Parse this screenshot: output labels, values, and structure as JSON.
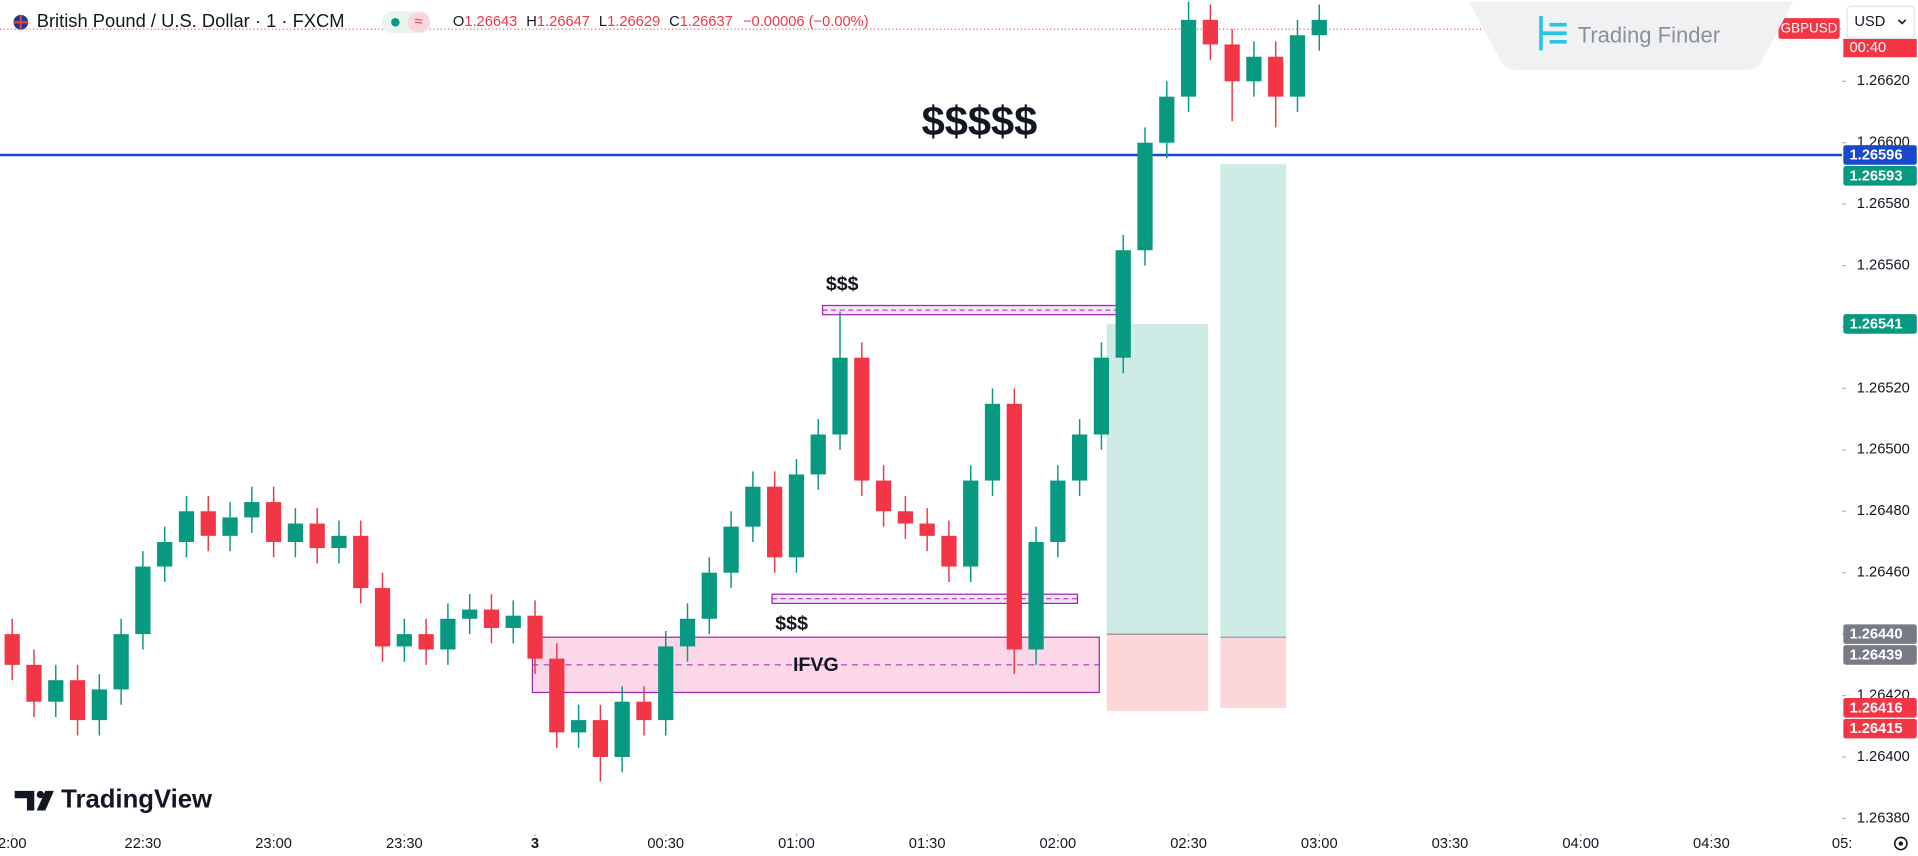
{
  "chart_data": {
    "type": "candlestick",
    "header": {
      "symbol": "British Pound / U.S. Dollar · 1 · FXCM",
      "ohlc": [
        {
          "key": "O",
          "value": "1.26643"
        },
        {
          "key": "H",
          "value": "1.26647"
        },
        {
          "key": "L",
          "value": "1.26629"
        },
        {
          "key": "C",
          "value": "1.26637"
        }
      ],
      "change": "−0.00006 (−0.00%)"
    },
    "brands": {
      "top": "Trading Finder",
      "bottom": "TradingView"
    },
    "currency": "USD",
    "up_color": "#089981",
    "down_color": "#f23645",
    "x": [
      0,
      5,
      10,
      15,
      20,
      25,
      30,
      35,
      40,
      45,
      50,
      55,
      60,
      65,
      70,
      75,
      80,
      85,
      90,
      95,
      100,
      105,
      110,
      115,
      120,
      125,
      130,
      135,
      140,
      145,
      150,
      155,
      160,
      165,
      170,
      175,
      180,
      185,
      190,
      195,
      200,
      205,
      210,
      215,
      220,
      225,
      230,
      235,
      240,
      245,
      250,
      255,
      260,
      265,
      270,
      275,
      280,
      285,
      290,
      295,
      300
    ],
    "open": [
      1.2644,
      1.2643,
      1.26418,
      1.26425,
      1.26412,
      1.26422,
      1.2644,
      1.26462,
      1.2647,
      1.2648,
      1.26472,
      1.26478,
      1.26483,
      1.2647,
      1.26476,
      1.26468,
      1.26472,
      1.26455,
      1.26436,
      1.2644,
      1.26435,
      1.26445,
      1.26448,
      1.26442,
      1.26446,
      1.26432,
      1.26408,
      1.26412,
      1.264,
      1.26418,
      1.26412,
      1.26436,
      1.26445,
      1.2646,
      1.26475,
      1.26488,
      1.26465,
      1.26492,
      1.26505,
      1.2653,
      1.2649,
      1.2648,
      1.26476,
      1.26472,
      1.26462,
      1.2649,
      1.26515,
      1.26435,
      1.2647,
      1.2649,
      1.26505,
      1.2653,
      1.26565,
      1.266,
      1.26615,
      1.2664,
      1.26632,
      1.2662,
      1.26628,
      1.26615,
      1.26635
    ],
    "high": [
      1.26445,
      1.26435,
      1.2643,
      1.2643,
      1.26427,
      1.26445,
      1.26467,
      1.26475,
      1.26485,
      1.26485,
      1.26483,
      1.26488,
      1.26488,
      1.26481,
      1.26481,
      1.26477,
      1.26477,
      1.2646,
      1.26445,
      1.26445,
      1.2645,
      1.26453,
      1.26453,
      1.26451,
      1.26451,
      1.26437,
      1.26417,
      1.26417,
      1.26423,
      1.26423,
      1.26441,
      1.2645,
      1.26465,
      1.2648,
      1.26493,
      1.26493,
      1.26497,
      1.2651,
      1.26545,
      1.26535,
      1.26495,
      1.26485,
      1.26481,
      1.26477,
      1.26495,
      1.2652,
      1.2652,
      1.26475,
      1.26495,
      1.2651,
      1.26535,
      1.2657,
      1.26605,
      1.2662,
      1.2666,
      1.26645,
      1.26637,
      1.26633,
      1.26633,
      1.2664,
      1.26645
    ],
    "low": [
      1.26425,
      1.26413,
      1.26413,
      1.26407,
      1.26407,
      1.26417,
      1.26435,
      1.26457,
      1.26465,
      1.26467,
      1.26467,
      1.26473,
      1.26465,
      1.26465,
      1.26463,
      1.26463,
      1.2645,
      1.26431,
      1.26431,
      1.2643,
      1.2643,
      1.2644,
      1.26437,
      1.26437,
      1.26427,
      1.26403,
      1.26403,
      1.26392,
      1.26395,
      1.26407,
      1.26407,
      1.26431,
      1.2644,
      1.26455,
      1.2647,
      1.2646,
      1.2646,
      1.26487,
      1.265,
      1.26485,
      1.26475,
      1.26471,
      1.26467,
      1.26457,
      1.26457,
      1.26485,
      1.26427,
      1.2643,
      1.26465,
      1.26485,
      1.265,
      1.26525,
      1.2656,
      1.26595,
      1.2661,
      1.26627,
      1.26607,
      1.26615,
      1.26605,
      1.2661,
      1.2663
    ],
    "close": [
      1.2643,
      1.26418,
      1.26425,
      1.26412,
      1.26422,
      1.2644,
      1.26462,
      1.2647,
      1.2648,
      1.26472,
      1.26478,
      1.26483,
      1.2647,
      1.26476,
      1.26468,
      1.26472,
      1.26455,
      1.26436,
      1.2644,
      1.26435,
      1.26445,
      1.26448,
      1.26442,
      1.26446,
      1.26432,
      1.26408,
      1.26412,
      1.264,
      1.26418,
      1.26412,
      1.26436,
      1.26445,
      1.2646,
      1.26475,
      1.26488,
      1.26465,
      1.26492,
      1.26505,
      1.2653,
      1.2649,
      1.2648,
      1.26476,
      1.26472,
      1.26462,
      1.2649,
      1.26515,
      1.26435,
      1.2647,
      1.2649,
      1.26505,
      1.2653,
      1.26565,
      1.266,
      1.26615,
      1.2664,
      1.26632,
      1.2662,
      1.26628,
      1.26615,
      1.26635,
      1.2664
    ],
    "xlim": [
      -2.8,
      420
    ],
    "xticks": [
      {
        "value": 0,
        "label": "2:00"
      },
      {
        "value": 30,
        "label": "22:30"
      },
      {
        "value": 60,
        "label": "23:00"
      },
      {
        "value": 90,
        "label": "23:30"
      },
      {
        "value": 120,
        "label": "3"
      },
      {
        "value": 150,
        "label": "00:30"
      },
      {
        "value": 180,
        "label": "01:00"
      },
      {
        "value": 210,
        "label": "01:30"
      },
      {
        "value": 240,
        "label": "02:00"
      },
      {
        "value": 270,
        "label": "02:30"
      },
      {
        "value": 300,
        "label": "03:00"
      },
      {
        "value": 330,
        "label": "03:30"
      },
      {
        "value": 360,
        "label": "04:00"
      },
      {
        "value": 390,
        "label": "04:30"
      },
      {
        "value": 420,
        "label": "05:"
      }
    ],
    "ylim": [
      1.26375,
      1.26646
    ],
    "yticks": [
      {
        "value": 1.2638,
        "label": "1.26380"
      },
      {
        "value": 1.264,
        "label": "1.26400"
      },
      {
        "value": 1.2642,
        "label": "1.26420"
      },
      {
        "value": 1.2644,
        "label": "1.26440"
      },
      {
        "value": 1.2646,
        "label": "1.26460"
      },
      {
        "value": 1.2648,
        "label": "1.26480"
      },
      {
        "value": 1.265,
        "label": "1.26500"
      },
      {
        "value": 1.2652,
        "label": "1.26520"
      },
      {
        "value": 1.2654,
        "label": "1.26540"
      },
      {
        "value": 1.2656,
        "label": "1.26560"
      },
      {
        "value": 1.2658,
        "label": "1.26580"
      },
      {
        "value": 1.266,
        "label": "1.26600"
      },
      {
        "value": 1.2662,
        "label": "1.26620"
      }
    ],
    "grid": false,
    "current": {
      "price": 1.26637,
      "symbol_tag": "GBPUSD",
      "countdown": "00:40"
    },
    "level": {
      "value": 1.26596,
      "color": "#1848cc"
    },
    "level_annotation": {
      "text": "$$$$$",
      "x": 222,
      "y": 1.26606
    },
    "liquidity_zones": [
      {
        "label": "$$$",
        "x": [
          186,
          256.5
        ],
        "y": [
          1.26544,
          1.26547
        ],
        "label_side": "top"
      },
      {
        "label": "$$$",
        "x": [
          174.4,
          244.5
        ],
        "y": [
          1.2645,
          1.26453
        ],
        "label_side": "bottom"
      }
    ],
    "fvg": {
      "label": "IFVG",
      "x": [
        119.4,
        249.5
      ],
      "y": [
        1.26421,
        1.26439
      ]
    },
    "positions": [
      {
        "x": [
          251.2,
          274.5
        ],
        "target": 1.26541,
        "entry": 1.2644,
        "stop": 1.26415
      },
      {
        "x": [
          277.3,
          292.4
        ],
        "target": 1.26593,
        "entry": 1.26439,
        "stop": 1.26416
      }
    ],
    "price_tags": [
      {
        "value": 1.26596,
        "label": "1.26596",
        "color": "#1848cc"
      },
      {
        "value": 1.26593,
        "label": "1.26593",
        "color": "#089981"
      },
      {
        "value": 1.26541,
        "label": "1.26541",
        "color": "#089981"
      },
      {
        "value": 1.2644,
        "label": "1.26440",
        "color": "#787b86"
      },
      {
        "value": 1.26439,
        "label": "1.26439",
        "color": "#787b86"
      },
      {
        "value": 1.26416,
        "label": "1.26416",
        "color": "#f23645"
      },
      {
        "value": 1.26415,
        "label": "1.26415",
        "color": "#f23645"
      }
    ]
  }
}
